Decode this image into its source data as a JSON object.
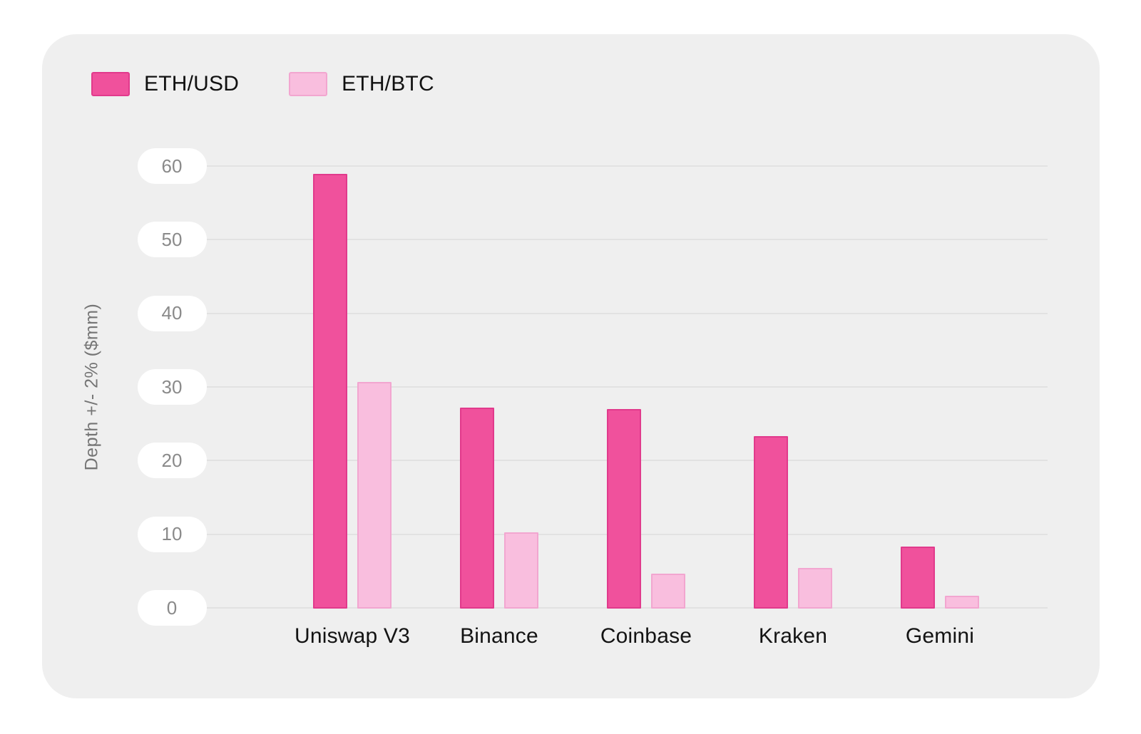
{
  "legend": {
    "items": [
      {
        "label": "ETH/USD",
        "color": "#f0519c",
        "border": "#e13a8c"
      },
      {
        "label": "ETH/BTC",
        "color": "#f9bede",
        "border": "#f2a6d0"
      }
    ]
  },
  "y_axis": {
    "title": "Depth +/- 2% ($mm)"
  },
  "chart_data": {
    "type": "bar",
    "categories": [
      "Uniswap V3",
      "Binance",
      "Coinbase",
      "Kraken",
      "Gemini"
    ],
    "series": [
      {
        "name": "ETH/USD",
        "color": "#f0519c",
        "border_color": "#e13a8c",
        "values": [
          59,
          27.3,
          27.1,
          23.4,
          8.4
        ]
      },
      {
        "name": "ETH/BTC",
        "color": "#f9bede",
        "border_color": "#f2a6d0",
        "values": [
          30.8,
          10.4,
          4.7,
          5.5,
          1.7
        ]
      }
    ],
    "title": "",
    "xlabel": "",
    "ylabel": "Depth +/- 2% ($mm)",
    "ylim": [
      0,
      60
    ],
    "yticks": [
      0,
      10,
      20,
      30,
      40,
      50,
      60
    ],
    "grid": true,
    "legend_position": "top-left"
  },
  "colors": {
    "page_bg": "#ffffff",
    "card_bg": "#efefef",
    "grid_line": "#e2e2e2",
    "tick_text": "#8a8a8a",
    "axis_title_text": "#757575",
    "x_label_text": "#131313",
    "pill_bg": "#ffffff"
  }
}
